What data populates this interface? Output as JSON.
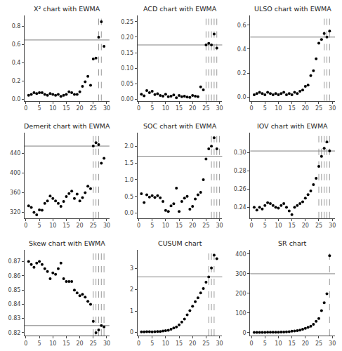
{
  "chart_data": [
    {
      "type": "scatter",
      "title": "X² chart with EWMA",
      "color": "black",
      "grid": false,
      "x": [
        1,
        2,
        3,
        4,
        5,
        6,
        7,
        8,
        9,
        10,
        11,
        12,
        13,
        14,
        15,
        16,
        17,
        18,
        19,
        20,
        21,
        22,
        23,
        24,
        25,
        26,
        27,
        28,
        29
      ],
      "values": [
        0.04,
        0.05,
        0.07,
        0.06,
        0.07,
        0.07,
        0.05,
        0.04,
        0.06,
        0.05,
        0.04,
        0.05,
        0.03,
        0.04,
        0.05,
        0.08,
        0.07,
        0.05,
        0.05,
        0.08,
        0.14,
        0.19,
        0.25,
        0.15,
        0.44,
        0.45,
        0.68,
        0.85,
        0.58
      ],
      "xlim": [
        -0.5,
        31
      ],
      "xticks": [
        0,
        5,
        10,
        15,
        20,
        25,
        30
      ],
      "ylim": [
        -0.02,
        0.92
      ],
      "yticks": [
        {
          "value": 0,
          "label": "0.0"
        },
        0.2,
        0.4,
        0.6,
        0.8
      ],
      "reference_lines": [
        {
          "type": "horizontal",
          "value": 0.65,
          "color": "#808080",
          "line_style": "solid"
        },
        {
          "type": "vertical",
          "value": 27,
          "color": "#808080",
          "line_style": "dashed"
        },
        {
          "type": "vertical",
          "value": 28,
          "color": "#808080",
          "line_style": "dashed"
        }
      ]
    },
    {
      "type": "scatter",
      "title": "ACD chart with EWMA",
      "color": "black",
      "grid": false,
      "x": [
        1,
        2,
        3,
        4,
        5,
        6,
        7,
        8,
        9,
        10,
        11,
        12,
        13,
        14,
        15,
        16,
        17,
        18,
        19,
        20,
        21,
        22,
        23,
        24,
        25,
        26,
        27,
        28,
        29
      ],
      "values": [
        0.016,
        0.011,
        0.028,
        0.021,
        0.026,
        0.015,
        0.018,
        0.012,
        0.01,
        0.016,
        0.008,
        0.01,
        0.014,
        0.005,
        0.012,
        0.008,
        0.01,
        0.007,
        0.006,
        0.012,
        0.01,
        0.008,
        0.04,
        0.03,
        0.175,
        0.18,
        0.175,
        0.21,
        0.165
      ],
      "xlim": [
        -0.5,
        31
      ],
      "xticks": [
        0,
        5,
        10,
        15,
        20,
        25,
        30
      ],
      "ylim": [
        -0.005,
        0.27
      ],
      "yticks": [
        {
          "value": 0,
          "label": "0.00"
        },
        0.05,
        {
          "value": 0.1,
          "label": "0.10"
        },
        0.15,
        {
          "value": 0.2,
          "label": "0.20"
        },
        0.25
      ],
      "reference_lines": [
        {
          "type": "horizontal",
          "value": 0.175,
          "color": "#808080",
          "line_style": "solid"
        },
        {
          "type": "vertical",
          "value": 25,
          "color": "#808080",
          "line_style": "dashed"
        },
        {
          "type": "vertical",
          "value": 26,
          "color": "#808080",
          "line_style": "dashed"
        },
        {
          "type": "vertical",
          "value": 27,
          "color": "#808080",
          "line_style": "dashed"
        },
        {
          "type": "vertical",
          "value": 28,
          "color": "#808080",
          "line_style": "dashed"
        },
        {
          "type": "vertical",
          "value": 29,
          "color": "#808080",
          "line_style": "dashed"
        }
      ]
    },
    {
      "type": "scatter",
      "title": "ULSO chart with EWMA",
      "color": "black",
      "grid": false,
      "x": [
        1,
        2,
        3,
        4,
        5,
        6,
        7,
        8,
        9,
        10,
        11,
        12,
        13,
        14,
        15,
        16,
        17,
        18,
        19,
        20,
        21,
        22,
        23,
        24,
        25,
        26,
        27,
        28,
        29
      ],
      "values": [
        0.02,
        0.03,
        0.04,
        0.03,
        0.02,
        0.04,
        0.03,
        0.02,
        0.03,
        0.02,
        0.03,
        0.04,
        0.02,
        0.03,
        0.02,
        0.04,
        0.03,
        0.05,
        0.06,
        0.09,
        0.1,
        0.18,
        0.22,
        0.32,
        0.45,
        0.48,
        0.53,
        0.5,
        0.55
      ],
      "xlim": [
        -0.5,
        31
      ],
      "xticks": [
        0,
        5,
        10,
        15,
        20,
        25,
        30
      ],
      "ylim": [
        -0.03,
        0.68
      ],
      "yticks": [
        {
          "value": 0,
          "label": "0.0"
        },
        0.2,
        0.4,
        0.6
      ],
      "reference_lines": [
        {
          "type": "horizontal",
          "value": 0.5,
          "color": "#808080",
          "line_style": "solid"
        },
        {
          "type": "vertical",
          "value": 27,
          "color": "#808080",
          "line_style": "dashed"
        },
        {
          "type": "vertical",
          "value": 28,
          "color": "#808080",
          "line_style": "dashed"
        },
        {
          "type": "vertical",
          "value": 29,
          "color": "#808080",
          "line_style": "dashed"
        }
      ]
    },
    {
      "type": "scatter",
      "title": "Demerit chart with EWMA",
      "color": "black",
      "grid": false,
      "x": [
        1,
        2,
        3,
        4,
        5,
        6,
        7,
        8,
        9,
        10,
        11,
        12,
        13,
        14,
        15,
        16,
        17,
        18,
        19,
        20,
        21,
        22,
        23,
        24,
        25,
        26,
        27,
        28,
        29
      ],
      "values": [
        333,
        330,
        320,
        315,
        325,
        324,
        338,
        343,
        353,
        348,
        343,
        338,
        332,
        342,
        352,
        358,
        363,
        348,
        357,
        343,
        350,
        360,
        373,
        368,
        455,
        462,
        458,
        420,
        430
      ],
      "xlim": [
        -0.5,
        31
      ],
      "xticks": [
        0,
        5,
        10,
        15,
        20,
        25,
        30
      ],
      "ylim": [
        308,
        482
      ],
      "yticks": [
        320,
        360,
        400,
        440
      ],
      "reference_lines": [
        {
          "type": "horizontal",
          "value": 455,
          "color": "#808080",
          "line_style": "solid"
        },
        {
          "type": "vertical",
          "value": 25,
          "color": "#808080",
          "line_style": "dashed"
        },
        {
          "type": "vertical",
          "value": 26,
          "color": "#808080",
          "line_style": "dashed"
        },
        {
          "type": "vertical",
          "value": 27,
          "color": "#808080",
          "line_style": "dashed"
        }
      ]
    },
    {
      "type": "scatter",
      "title": "SOC chart with EWMA",
      "color": "black",
      "grid": false,
      "x": [
        1,
        2,
        3,
        4,
        5,
        6,
        7,
        8,
        9,
        10,
        11,
        12,
        13,
        14,
        15,
        16,
        17,
        18,
        19,
        20,
        21,
        22,
        23,
        24,
        25,
        26,
        27,
        28,
        29
      ],
      "values": [
        0.58,
        0.32,
        0.55,
        0.48,
        0.52,
        0.47,
        0.52,
        0.46,
        0.35,
        0.08,
        0.05,
        0.22,
        0.28,
        0.75,
        0.05,
        0.35,
        0.45,
        0.5,
        0.12,
        0.2,
        0.42,
        0.55,
        0.62,
        1.0,
        1.62,
        1.92,
        2.0,
        2.25,
        1.92
      ],
      "xlim": [
        -0.5,
        31
      ],
      "xticks": [
        0,
        5,
        10,
        15,
        20,
        25,
        30
      ],
      "ylim": [
        -0.15,
        2.4
      ],
      "yticks": [
        {
          "value": 0,
          "label": "0.0"
        },
        0.5,
        {
          "value": 1,
          "label": "1.0"
        },
        1.5,
        {
          "value": 2,
          "label": "2.0"
        }
      ],
      "reference_lines": [
        {
          "type": "horizontal",
          "value": 1.7,
          "color": "#808080",
          "line_style": "solid"
        },
        {
          "type": "vertical",
          "value": 27,
          "color": "#808080",
          "line_style": "dashed"
        },
        {
          "type": "vertical",
          "value": 28,
          "color": "#808080",
          "line_style": "dashed"
        },
        {
          "type": "vertical",
          "value": 29,
          "color": "#808080",
          "line_style": "dashed"
        },
        {
          "type": "vertical",
          "value": 30,
          "color": "#808080",
          "line_style": "dashed"
        }
      ]
    },
    {
      "type": "scatter",
      "title": "IOV chart with EWMA",
      "color": "black",
      "grid": false,
      "x": [
        1,
        2,
        3,
        4,
        5,
        6,
        7,
        8,
        9,
        10,
        11,
        12,
        13,
        14,
        15,
        16,
        17,
        18,
        19,
        20,
        21,
        22,
        23,
        24,
        25,
        26,
        27,
        28,
        29
      ],
      "values": [
        0.24,
        0.237,
        0.24,
        0.238,
        0.242,
        0.245,
        0.244,
        0.242,
        0.24,
        0.239,
        0.242,
        0.244,
        0.24,
        0.236,
        0.232,
        0.24,
        0.242,
        0.244,
        0.246,
        0.25,
        0.254,
        0.258,
        0.265,
        0.272,
        0.285,
        0.296,
        0.305,
        0.312,
        0.302
      ],
      "xlim": [
        -0.5,
        31
      ],
      "xticks": [
        0,
        5,
        10,
        15,
        20,
        25,
        30
      ],
      "ylim": [
        0.228,
        0.322
      ],
      "yticks": [
        0.24,
        0.26,
        0.28,
        {
          "value": 0.3,
          "label": "0.30"
        }
      ],
      "reference_lines": [
        {
          "type": "horizontal",
          "value": 0.302,
          "color": "#808080",
          "line_style": "solid"
        },
        {
          "type": "vertical",
          "value": 25,
          "color": "#808080",
          "line_style": "dashed"
        },
        {
          "type": "vertical",
          "value": 26,
          "color": "#808080",
          "line_style": "dashed"
        },
        {
          "type": "vertical",
          "value": 27,
          "color": "#808080",
          "line_style": "dashed"
        },
        {
          "type": "vertical",
          "value": 28,
          "color": "#808080",
          "line_style": "dashed"
        },
        {
          "type": "vertical",
          "value": 29,
          "color": "#808080",
          "line_style": "dashed"
        }
      ]
    },
    {
      "type": "scatter",
      "title": "Skew chart with EWMA",
      "color": "black",
      "grid": false,
      "x": [
        1,
        2,
        3,
        4,
        5,
        6,
        7,
        8,
        9,
        10,
        11,
        12,
        13,
        14,
        15,
        16,
        17,
        18,
        19,
        20,
        21,
        22,
        23,
        24,
        25,
        26,
        27,
        28,
        29
      ],
      "values": [
        0.87,
        0.868,
        0.866,
        0.869,
        0.87,
        0.868,
        0.865,
        0.863,
        0.858,
        0.862,
        0.861,
        0.865,
        0.869,
        0.858,
        0.856,
        0.856,
        0.856,
        0.85,
        0.848,
        0.846,
        0.847,
        0.845,
        0.842,
        0.84,
        0.828,
        0.82,
        0.822,
        0.825,
        0.824
      ],
      "xlim": [
        -0.5,
        31
      ],
      "xticks": [
        0,
        5,
        10,
        15,
        20,
        25,
        30
      ],
      "ylim": [
        0.818,
        0.878
      ],
      "yticks": [
        0.82,
        0.83,
        0.84,
        0.85,
        0.86,
        0.87
      ],
      "reference_lines": [
        {
          "type": "horizontal",
          "value": 0.825,
          "color": "#808080",
          "line_style": "solid"
        },
        {
          "type": "vertical",
          "value": 25,
          "color": "#808080",
          "line_style": "dashed"
        },
        {
          "type": "vertical",
          "value": 26,
          "color": "#808080",
          "line_style": "dashed"
        },
        {
          "type": "vertical",
          "value": 27,
          "color": "#808080",
          "line_style": "dashed"
        },
        {
          "type": "vertical",
          "value": 28,
          "color": "#808080",
          "line_style": "dashed"
        },
        {
          "type": "vertical",
          "value": 29,
          "color": "#808080",
          "line_style": "dashed"
        }
      ]
    },
    {
      "type": "scatter",
      "title": "CUSUM chart",
      "color": "black",
      "grid": false,
      "x": [
        1,
        2,
        3,
        4,
        5,
        6,
        7,
        8,
        9,
        10,
        11,
        12,
        13,
        14,
        15,
        16,
        17,
        18,
        19,
        20,
        21,
        22,
        23,
        24,
        25,
        26,
        27,
        28,
        29
      ],
      "values": [
        0.02,
        0.02,
        0.03,
        0.03,
        0.02,
        0.03,
        0.04,
        0.04,
        0.06,
        0.08,
        0.1,
        0.15,
        0.2,
        0.25,
        0.35,
        0.48,
        0.62,
        0.82,
        1.02,
        1.22,
        1.44,
        1.62,
        1.85,
        2.05,
        2.35,
        2.6,
        3.02,
        3.62,
        3.45
      ],
      "xlim": [
        -0.5,
        31
      ],
      "xticks": [
        0,
        5,
        10,
        15,
        20,
        25,
        30
      ],
      "ylim": [
        -0.15,
        3.85
      ],
      "yticks": [
        0,
        1,
        2,
        3
      ],
      "reference_lines": [
        {
          "type": "horizontal",
          "value": 2.6,
          "color": "#808080",
          "line_style": "solid"
        },
        {
          "type": "vertical",
          "value": 26,
          "color": "#808080",
          "line_style": "dashed"
        },
        {
          "type": "vertical",
          "value": 27,
          "color": "#808080",
          "line_style": "dashed"
        },
        {
          "type": "vertical",
          "value": 28,
          "color": "#808080",
          "line_style": "dashed"
        }
      ]
    },
    {
      "type": "scatter",
      "title": "SR chart",
      "color": "black",
      "grid": false,
      "x": [
        1,
        2,
        3,
        4,
        5,
        6,
        7,
        8,
        9,
        10,
        11,
        12,
        13,
        14,
        15,
        16,
        17,
        18,
        19,
        20,
        21,
        22,
        23,
        24,
        25,
        26,
        27,
        28,
        29
      ],
      "values": [
        1,
        1,
        1,
        1,
        1,
        2,
        2,
        2,
        2,
        2,
        3,
        3,
        4,
        5,
        7,
        8,
        10,
        13,
        17,
        22,
        27,
        32,
        42,
        57,
        72,
        112,
        152,
        198,
        392
      ],
      "xlim": [
        -0.5,
        31
      ],
      "xticks": [
        0,
        5,
        10,
        15,
        20,
        25,
        30
      ],
      "ylim": [
        -15,
        420
      ],
      "yticks": [
        0,
        100,
        200,
        300,
        400
      ],
      "reference_lines": [
        {
          "type": "horizontal",
          "value": 300,
          "color": "#808080",
          "line_style": "solid"
        },
        {
          "type": "vertical",
          "value": 29,
          "color": "#808080",
          "line_style": "dashed"
        }
      ]
    }
  ]
}
